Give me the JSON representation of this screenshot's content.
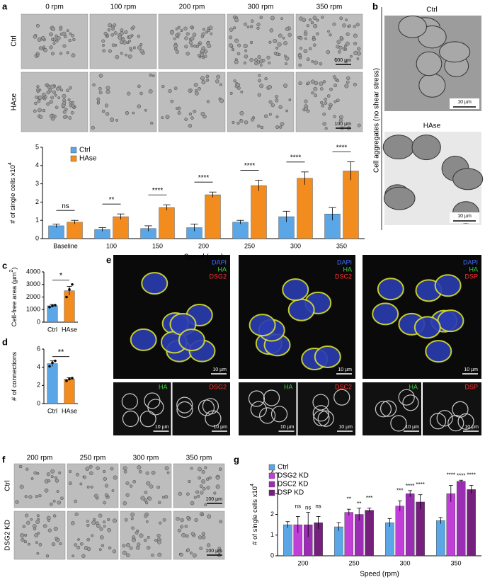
{
  "panels": {
    "a": {
      "letter": "a",
      "columns": [
        "0 rpm",
        "100 rpm",
        "200 rpm",
        "300 rpm",
        "350 rpm"
      ],
      "rows": [
        "Ctrl",
        "HAse"
      ],
      "scale_bar": "100 µm"
    },
    "b": {
      "letter": "b",
      "side_label": "Cell aggregates (no shear stress)",
      "images": [
        "Ctrl",
        "HAse"
      ],
      "scale_bar": "10 µm"
    },
    "c": {
      "letter": "c"
    },
    "d": {
      "letter": "d"
    },
    "e": {
      "letter": "e",
      "stains": [
        [
          "DAPI",
          "HA",
          "DSG2"
        ],
        [
          "DAPI",
          "HA",
          "DSC2"
        ],
        [
          "DAPI",
          "HA",
          "DSP"
        ]
      ],
      "scale_bar": "10 µm"
    },
    "f": {
      "letter": "f",
      "columns": [
        "200 rpm",
        "250 rpm",
        "300 rpm",
        "350 rpm"
      ],
      "rows": [
        "Ctrl",
        "DSG2 KD"
      ],
      "scale_bar": "100 µm"
    },
    "g": {
      "letter": "g"
    }
  },
  "chart_data": [
    {
      "type": "bar",
      "ylabel": [
        "# of single cells x10",
        "4"
      ],
      "xlabel": "Speed (rpm)",
      "categories": [
        "Baseline",
        "100",
        "150",
        "200",
        "250",
        "300",
        "350"
      ],
      "series": [
        {
          "name": "Ctrl",
          "color": "#5aa6e6",
          "values": [
            0.7,
            0.5,
            0.55,
            0.6,
            0.9,
            1.2,
            1.35
          ],
          "errors": [
            0.1,
            0.1,
            0.15,
            0.2,
            0.1,
            0.3,
            0.35
          ]
        },
        {
          "name": "HAse",
          "color": "#f28c1e",
          "values": [
            0.9,
            1.2,
            1.7,
            2.4,
            2.9,
            3.3,
            3.7
          ],
          "errors": [
            0.1,
            0.15,
            0.15,
            0.15,
            0.3,
            0.35,
            0.5
          ]
        }
      ],
      "significance": [
        "ns",
        "**",
        "****",
        "****",
        "****",
        "****",
        "****"
      ],
      "ylim": [
        0,
        5
      ],
      "yticks": [
        0,
        1,
        2,
        3,
        4,
        5
      ],
      "legend": "top-left"
    },
    {
      "type": "bar",
      "ylabel": [
        "Cell-free area (µm",
        "2",
        ")"
      ],
      "categories": [
        "Ctrl",
        "HAse"
      ],
      "values": [
        1300,
        2500
      ],
      "errors": [
        100,
        350
      ],
      "colors": [
        "#5aa6e6",
        "#f28c1e"
      ],
      "points": [
        [
          1200,
          1300,
          1350
        ],
        [
          2000,
          2600,
          3000
        ]
      ],
      "significance": "*",
      "ylim": [
        0,
        4000
      ],
      "yticks": [
        0,
        1000,
        2000,
        3000,
        4000
      ]
    },
    {
      "type": "bar",
      "ylabel": [
        "# of connections"
      ],
      "categories": [
        "Ctrl",
        "HAse"
      ],
      "values": [
        4.4,
        2.7
      ],
      "errors": [
        0.3,
        0.15
      ],
      "colors": [
        "#5aa6e6",
        "#f28c1e"
      ],
      "points": [
        [
          4.1,
          4.5,
          4.7
        ],
        [
          2.5,
          2.7,
          2.8
        ]
      ],
      "significance": "**",
      "ylim": [
        0,
        6
      ],
      "yticks": [
        0,
        2,
        4,
        6
      ]
    },
    {
      "type": "bar",
      "ylabel": [
        "# of single cells x10",
        "4"
      ],
      "xlabel": "Speed (rpm)",
      "categories": [
        "200",
        "250",
        "300",
        "350"
      ],
      "series": [
        {
          "name": "Ctrl",
          "color": "#5aa6e6",
          "values": [
            1.5,
            1.4,
            1.6,
            1.7
          ],
          "errors": [
            0.15,
            0.2,
            0.2,
            0.15
          ]
        },
        {
          "name": "DSG2 KD",
          "color": "#c13ed8",
          "values": [
            1.5,
            2.1,
            2.4,
            3.0
          ],
          "errors": [
            0.4,
            0.15,
            0.25,
            0.4
          ],
          "sig_labels": [
            "ns",
            "**",
            "***",
            "****"
          ]
        },
        {
          "name": "DSC2 KD",
          "color": "#9b2db5",
          "values": [
            1.5,
            2.0,
            3.0,
            3.6
          ],
          "errors": [
            0.6,
            0.3,
            0.15,
            0.05
          ],
          "sig_labels": [
            "ns",
            "**",
            "****",
            "****"
          ]
        },
        {
          "name": "DSP KD",
          "color": "#74207c",
          "values": [
            1.6,
            2.2,
            2.6,
            3.2
          ],
          "errors": [
            0.3,
            0.1,
            0.35,
            0.2
          ],
          "sig_labels": [
            "ns",
            "***",
            "****",
            "****"
          ]
        }
      ],
      "ylim": [
        0,
        4
      ],
      "yticks": [
        0,
        1,
        2,
        3,
        4
      ],
      "legend": "top-left"
    }
  ]
}
